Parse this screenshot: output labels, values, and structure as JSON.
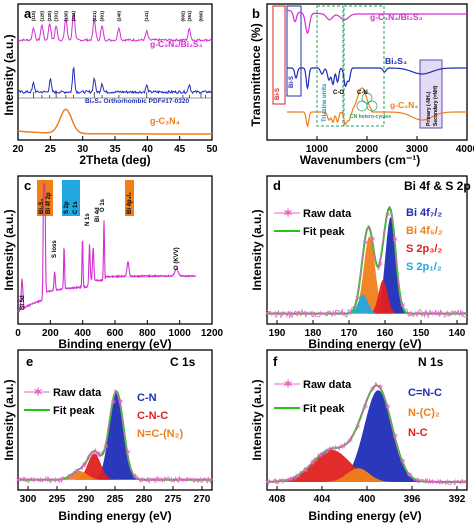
{
  "colors": {
    "orange": "#f07f1a",
    "blue": "#1f2db8",
    "magenta": "#d42fd0",
    "green": "#22c41a",
    "red": "#e02020",
    "cyan": "#22a8e0",
    "starpink": "#e666c8"
  },
  "chart_data": [
    {
      "type": "line",
      "panel": "a",
      "xlabel": "2Theta (deg)",
      "ylabel": "Intensity (a.u.)",
      "xlim": [
        20,
        50
      ],
      "xticks": [
        "20",
        "25",
        "30",
        "35",
        "40",
        "45",
        "50"
      ],
      "series": [
        {
          "name": "g-C₃N₄/Bi₂S₃",
          "peaks": [
            [
              22.4,
              0.45
            ],
            [
              23.7,
              0.55
            ],
            [
              24.9,
              0.6
            ],
            [
              25.9,
              0.5
            ],
            [
              27.4,
              0.8
            ],
            [
              28.6,
              1.0
            ],
            [
              31.8,
              0.75
            ],
            [
              33.0,
              0.5
            ],
            [
              35.6,
              0.45
            ],
            [
              39.9,
              0.3
            ],
            [
              46.5,
              0.4
            ],
            [
              52.7,
              0.3
            ]
          ]
        },
        {
          "name": "Bi₂S₃",
          "peaks": [
            [
              22.4,
              0.35
            ],
            [
              25.0,
              0.5
            ],
            [
              28.6,
              1.0
            ],
            [
              31.8,
              0.55
            ],
            [
              33.0,
              0.35
            ],
            [
              39.9,
              0.25
            ],
            [
              46.5,
              0.3
            ]
          ]
        },
        {
          "name": "Bi₂S₃ Orthorhombic PDF#17-0320",
          "sticks": [
            22.4,
            23.7,
            24.9,
            25.9,
            27.4,
            28.6,
            31.8,
            33.0,
            35.6,
            39.9,
            45.5,
            46.5,
            48.3,
            49.0
          ]
        },
        {
          "name": "g-C₃N₄",
          "peaks": [
            [
              27.4,
              1.0
            ],
            [
              13.0,
              0.1
            ]
          ]
        }
      ],
      "peak_labels": [
        "(110)",
        "(120)",
        "(220)",
        "(101)",
        "(130)",
        "(211)",
        "(221)",
        "(301)",
        "(240)",
        "(141)",
        "(002)",
        "(351)",
        "(060)"
      ],
      "inset_label": "*"
    },
    {
      "type": "line",
      "panel": "b",
      "xlabel": "Wavenumbers (cm⁻¹)",
      "ylabel": "Transmittance (%)",
      "xlim": [
        0,
        4000
      ],
      "xticks": [
        "1000",
        "2000",
        "3000",
        "4000"
      ],
      "series": [
        {
          "name": "g-C₃N₄/Bi₂S₃"
        },
        {
          "name": "Bi₂S₃"
        },
        {
          "name": "g-C₃N₄"
        }
      ],
      "annotations": [
        "Bi-S",
        "Bi-S",
        "Triazine units",
        "C-O",
        "C-N",
        "CN hetero-cycles",
        "Primary (-NH₂)\nSecondary (=NH)"
      ]
    },
    {
      "type": "line",
      "panel": "c",
      "xlabel": "Binding energy (eV)",
      "ylabel": "Intensity (a.u.)",
      "xlim": [
        0,
        1200
      ],
      "xticks": [
        "0",
        "200",
        "400",
        "600",
        "800",
        "1000",
        "1200"
      ],
      "labels": [
        "Bi 5d",
        "Bi 4f",
        "S 2s",
        "Bi 4f 2p",
        "S 2p",
        "S loss",
        "C 1s",
        "N 1s",
        "Bi 4d",
        "O 1s",
        "Bi 4p3/2",
        "O (KVV)"
      ]
    },
    {
      "type": "line",
      "panel": "d",
      "title": "Bi 4f & S 2p",
      "xlabel": "Binding energy (eV)",
      "ylabel": "Intensity (a.u.)",
      "xlim": [
        190,
        140
      ],
      "xticks": [
        "190",
        "180",
        "170",
        "160",
        "150",
        "140"
      ],
      "legend": [
        "Raw data",
        "Fit peak"
      ],
      "components": [
        {
          "name": "Bi 4f7/2",
          "center": 159.1,
          "height": 1.0,
          "color": "blue"
        },
        {
          "name": "Bi 4f5/2",
          "center": 164.4,
          "height": 0.8,
          "color": "orange"
        },
        {
          "name": "S 2p3/2",
          "center": 161.0,
          "height": 0.35,
          "color": "red"
        },
        {
          "name": "S 2p1/2",
          "center": 166.0,
          "height": 0.2,
          "color": "cyan"
        }
      ]
    },
    {
      "type": "line",
      "panel": "e",
      "title": "C 1s",
      "xlabel": "Binding energy (eV)",
      "ylabel": "Intensity (a.u.)",
      "xlim": [
        300,
        270
      ],
      "xticks": [
        "300",
        "295",
        "290",
        "285",
        "280",
        "275",
        "270"
      ],
      "legend": [
        "Raw data",
        "Fit peak"
      ],
      "components": [
        {
          "name": "C-N",
          "center": 284.8,
          "height": 1.0,
          "color": "blue"
        },
        {
          "name": "C-N-C",
          "center": 288.2,
          "height": 0.3,
          "color": "red"
        },
        {
          "name": "N=C-(N₂)",
          "center": 290.5,
          "height": 0.1,
          "color": "orange"
        }
      ]
    },
    {
      "type": "line",
      "panel": "f",
      "title": "N 1s",
      "xlabel": "Binding energy (eV)",
      "ylabel": "Intensity (a.u.)",
      "xlim": [
        410,
        392
      ],
      "xticks": [
        "408",
        "404",
        "400",
        "396",
        "392"
      ],
      "legend": [
        "Raw data",
        "Fit peak"
      ],
      "components": [
        {
          "name": "C=N-C",
          "center": 400.0,
          "height": 1.0,
          "color": "blue"
        },
        {
          "name": "N-(C)₂",
          "center": 401.8,
          "height": 0.15,
          "color": "orange"
        },
        {
          "name": "N-C",
          "center": 404.2,
          "height": 0.35,
          "color": "red"
        }
      ]
    }
  ],
  "text": {
    "a": {
      "letter": "a",
      "ylabel": "Intensity (a.u.)",
      "xlabel": "2Theta (deg)",
      "s1": "g-C₃N₄/Bi₂S₃",
      "s2": "Bi₂S₃ Orthorhombic PDF#17-0320",
      "s3": "g-C₃N₄",
      "ticks": [
        "20",
        "25",
        "30",
        "35",
        "40",
        "45",
        "50"
      ]
    },
    "b": {
      "letter": "b",
      "ylabel": "Transmittance (%)",
      "xlabel": "Wavenumbers (cm⁻¹)",
      "s1": "g-C₃N₄/Bi₂S₃",
      "s2": "Bi₂S₃",
      "s3": "g-C₃N₄",
      "ticks": [
        "1000",
        "2000",
        "3000",
        "4000"
      ],
      "ann1": "Bi-S",
      "ann2": "Bi-S",
      "ann3": "Triazine units",
      "ann4": "C-O",
      "ann5": "C-N",
      "ann6": "CN hetero-cycles",
      "ann7": "Primary (-NH₂)",
      "ann8": "Secondary (=NH)"
    },
    "c": {
      "letter": "c",
      "ylabel": "Intensity (a.u.)",
      "xlabel": "Binding energy (eV)",
      "ticks": [
        "0",
        "200",
        "400",
        "600",
        "800",
        "1000",
        "1200"
      ],
      "l1": "Bi₂S₃",
      "l2": "Bi 4f 2p",
      "l3": "S 2p",
      "l4": "C 1s",
      "l5": "N 1s",
      "l6": "S loss",
      "l7": "Bi 4d",
      "l8": "O 1s",
      "l9": "Bi 4p₃/₂",
      "l10": "O (KVV)",
      "l11": "Bi 5d"
    },
    "d": {
      "letter": "d",
      "title": "Bi 4f & S 2p",
      "ylabel": "Intensity (a.u.)",
      "xlabel": "Binding energy (eV)",
      "ticks": [
        "190",
        "180",
        "170",
        "160",
        "150",
        "140"
      ],
      "raw": "Raw data",
      "fit": "Fit peak",
      "c1": "Bi 4f₇/₂",
      "c2": "Bi 4f₅/₂",
      "c3": "S 2p₃/₂",
      "c4": "S 2p₁/₂"
    },
    "e": {
      "letter": "e",
      "title": "C 1s",
      "ylabel": "Intensity (a.u.)",
      "xlabel": "Binding energy (eV)",
      "ticks": [
        "300",
        "295",
        "290",
        "285",
        "280",
        "275",
        "270"
      ],
      "raw": "Raw data",
      "fit": "Fit peak",
      "c1": "C-N",
      "c2": "C-N-C",
      "c3": "N=C-(N₂)"
    },
    "f": {
      "letter": "f",
      "title": "N 1s",
      "ylabel": "Intensity (a.u.)",
      "xlabel": "Binding energy (eV)",
      "ticks": [
        "408",
        "404",
        "400",
        "396",
        "392"
      ],
      "raw": "Raw data",
      "fit": "Fit peak",
      "c1": "C=N-C",
      "c2": "N-(C)₂",
      "c3": "N-C"
    }
  }
}
